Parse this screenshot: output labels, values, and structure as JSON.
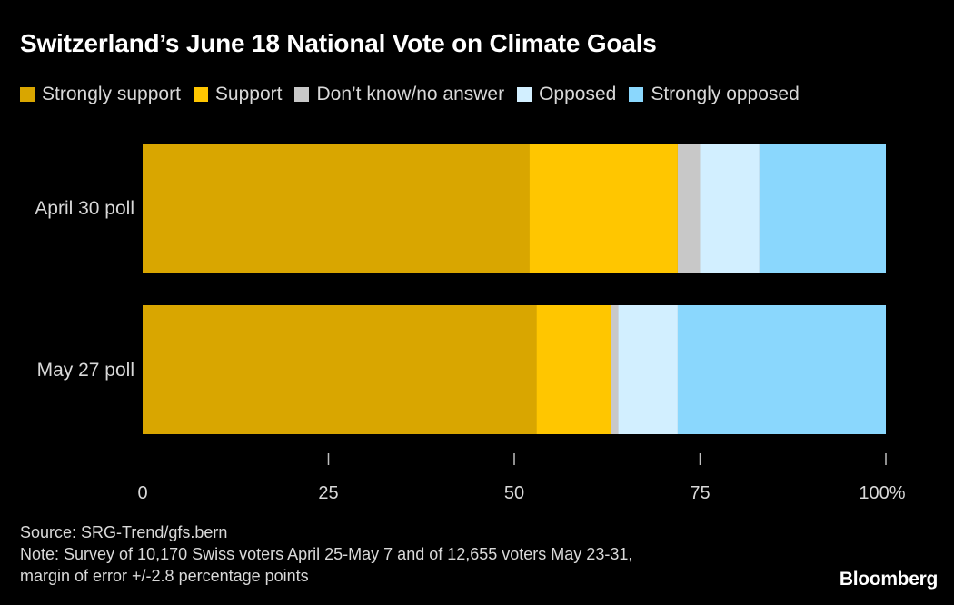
{
  "chart_data": {
    "type": "bar",
    "orientation": "horizontal",
    "stacked": true,
    "title": "Switzerland’s June 18 National Vote on Climate Goals",
    "categories": [
      "April 30 poll",
      "May 27 poll"
    ],
    "series": [
      {
        "name": "Strongly support",
        "color": "#d9a600",
        "values": [
          52,
          53
        ]
      },
      {
        "name": "Support",
        "color": "#ffc600",
        "values": [
          20,
          10
        ]
      },
      {
        "name": "Don’t know/no answer",
        "color": "#c8c8c8",
        "values": [
          3,
          1
        ]
      },
      {
        "name": "Opposed",
        "color": "#d2efff",
        "values": [
          8,
          8
        ]
      },
      {
        "name": "Strongly opposed",
        "color": "#8ad7fd",
        "values": [
          17,
          28
        ]
      }
    ],
    "xlim": [
      0,
      100
    ],
    "xticks": [
      0,
      25,
      50,
      75,
      100
    ],
    "xtick_labels": [
      "0",
      "25",
      "50",
      "75",
      "100%"
    ],
    "xlabel": "",
    "ylabel": "",
    "legend_position": "top"
  },
  "footer": {
    "source": "Source: SRG-Trend/gfs.bern",
    "note_line1": "Note: Survey of 10,170 Swiss voters April 25-May 7 and of 12,655 voters May 23-31,",
    "note_line2": "margin of error +/-2.8 percentage points"
  },
  "brand": "Bloomberg"
}
